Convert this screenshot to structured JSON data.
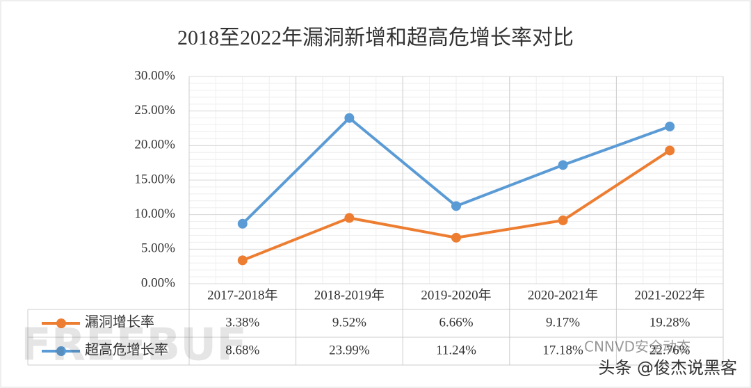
{
  "chart_data": {
    "type": "line",
    "title": "2018至2022年漏洞新增和超高危增长率对比",
    "categories": [
      "2017-2018年",
      "2018-2019年",
      "2019-2020年",
      "2020-2021年",
      "2021-2022年"
    ],
    "series": [
      {
        "name": "漏洞增长率",
        "color": "#ed7d31",
        "values": [
          3.38,
          9.52,
          6.66,
          9.17,
          19.28
        ],
        "value_labels": [
          "3.38%",
          "9.52%",
          "6.66%",
          "9.17%",
          "19.28%"
        ]
      },
      {
        "name": "超高危增长率",
        "color": "#5b9bd5",
        "values": [
          8.68,
          23.99,
          11.24,
          17.18,
          22.76
        ],
        "value_labels": [
          "8.68%",
          "23.99%",
          "11.24%",
          "17.18%",
          "22.76%"
        ]
      }
    ],
    "ylim": [
      0,
      30
    ],
    "yticks": [
      {
        "value": 0,
        "label": "0.00%"
      },
      {
        "value": 5,
        "label": "5.00%"
      },
      {
        "value": 10,
        "label": "10.00%"
      },
      {
        "value": 15,
        "label": "15.00%"
      },
      {
        "value": 20,
        "label": "20.00%"
      },
      {
        "value": 25,
        "label": "25.00%"
      },
      {
        "value": 30,
        "label": "30.00%"
      }
    ],
    "grid": true,
    "watermarks": [
      "FREEBUF",
      "CNNVD安全动态",
      "头条 @俊杰说黑客"
    ]
  }
}
